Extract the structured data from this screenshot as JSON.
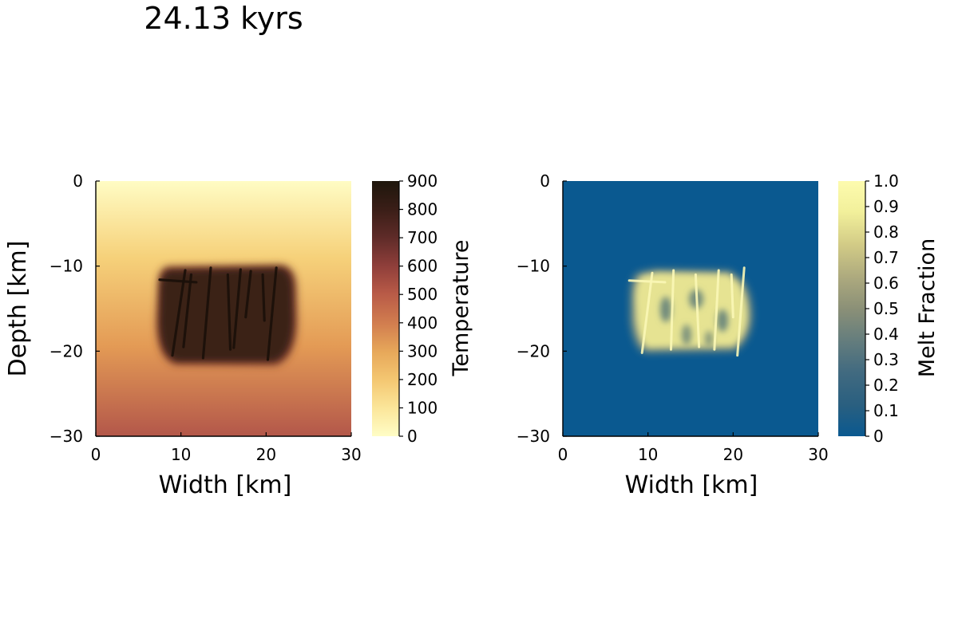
{
  "figure": {
    "title": "24.13 kyrs"
  },
  "colors": {
    "temperature_colormap": [
      "#fffdc6",
      "#fbe69a",
      "#f4c772",
      "#e7a85a",
      "#d27e4f",
      "#b85a47",
      "#8e3e3a",
      "#5e2b28",
      "#3a1e17",
      "#1e160c"
    ],
    "melt_colormap": [
      "#0a5990",
      "#295f80",
      "#416a80",
      "#667e7d",
      "#8b9077",
      "#aca97e",
      "#d2cb86",
      "#f2f09b",
      "#fdfbae"
    ],
    "melt_background": "#0a5990",
    "melt_body": "#f1ec97",
    "hot_body": "#3a2219"
  },
  "chart_data": [
    {
      "type": "heatmap",
      "xlabel": "Width [km]",
      "ylabel": "Depth [km]",
      "xlim": [
        0,
        30
      ],
      "ylim": [
        -30,
        0
      ],
      "xticks": [
        0,
        10,
        20,
        30
      ],
      "yticks": [
        0,
        -10,
        -20,
        -30
      ],
      "xtick_labels": [
        "0",
        "10",
        "20",
        "30"
      ],
      "ytick_labels": [
        "0",
        "−10",
        "−20",
        "−30"
      ],
      "colorbar": {
        "label": "Temperature",
        "range": [
          0,
          900
        ],
        "ticks": [
          0,
          100,
          200,
          300,
          400,
          500,
          600,
          700,
          800,
          900
        ],
        "tick_labels": [
          "0",
          "100",
          "200",
          "300",
          "400",
          "500",
          "600",
          "700",
          "800",
          "900"
        ]
      },
      "background_gradient": [
        {
          "depth": 0,
          "value": 0
        },
        {
          "depth": -10,
          "value": 210
        },
        {
          "depth": -20,
          "value": 310
        },
        {
          "depth": -30,
          "value": 560
        }
      ],
      "intrusion": {
        "x": [
          7.5,
          23
        ],
        "y": [
          -21.5,
          -9.8
        ],
        "value": 860
      },
      "dikes": [
        {
          "x1": 7.5,
          "y1": -11.6,
          "x2": 11.8,
          "y2": -11.9
        },
        {
          "x1": 10.5,
          "y1": -10.5,
          "x2": 9.0,
          "y2": -20.5
        },
        {
          "x1": 11.2,
          "y1": -11.0,
          "x2": 10.3,
          "y2": -19.5
        },
        {
          "x1": 13.5,
          "y1": -10.2,
          "x2": 12.6,
          "y2": -20.8
        },
        {
          "x1": 15.5,
          "y1": -11.0,
          "x2": 15.8,
          "y2": -19.8
        },
        {
          "x1": 17.0,
          "y1": -10.4,
          "x2": 16.2,
          "y2": -19.6
        },
        {
          "x1": 18.2,
          "y1": -10.6,
          "x2": 17.6,
          "y2": -16.0
        },
        {
          "x1": 19.6,
          "y1": -11.0,
          "x2": 19.8,
          "y2": -16.4
        },
        {
          "x1": 21.2,
          "y1": -10.2,
          "x2": 20.2,
          "y2": -21.0
        }
      ]
    },
    {
      "type": "heatmap",
      "xlabel": "Width [km]",
      "ylabel": "",
      "xlim": [
        0,
        30
      ],
      "ylim": [
        -30,
        0
      ],
      "xticks": [
        0,
        10,
        20,
        30
      ],
      "yticks": [
        0,
        -10,
        -20,
        -30
      ],
      "xtick_labels": [
        "0",
        "10",
        "20",
        "30"
      ],
      "ytick_labels": [
        "0",
        "−10",
        "−20",
        "−30"
      ],
      "colorbar": {
        "label": "Melt Fraction",
        "range": [
          0,
          1
        ],
        "ticks": [
          0,
          0.1,
          0.2,
          0.3,
          0.4,
          0.5,
          0.6,
          0.7,
          0.8,
          0.9,
          1.0
        ],
        "tick_labels": [
          "0",
          "0.1",
          "0.2",
          "0.3",
          "0.4",
          "0.5",
          "0.6",
          "0.7",
          "0.8",
          "0.9",
          "1.0"
        ]
      },
      "background_value": 0,
      "intrusion": {
        "x": [
          8,
          22
        ],
        "y": [
          -20.5,
          -10
        ],
        "value": 0.85
      },
      "dikes": [
        {
          "x1": 7.8,
          "y1": -11.7,
          "x2": 12.0,
          "y2": -11.9
        },
        {
          "x1": 10.5,
          "y1": -10.8,
          "x2": 9.3,
          "y2": -20.2
        },
        {
          "x1": 13.0,
          "y1": -10.5,
          "x2": 12.7,
          "y2": -19.8
        },
        {
          "x1": 15.6,
          "y1": -11.0,
          "x2": 16.0,
          "y2": -19.5
        },
        {
          "x1": 18.3,
          "y1": -10.5,
          "x2": 17.8,
          "y2": -19.8
        },
        {
          "x1": 19.8,
          "y1": -11.0,
          "x2": 20.0,
          "y2": -16.0
        },
        {
          "x1": 21.3,
          "y1": -10.2,
          "x2": 20.5,
          "y2": -20.5
        }
      ]
    }
  ]
}
